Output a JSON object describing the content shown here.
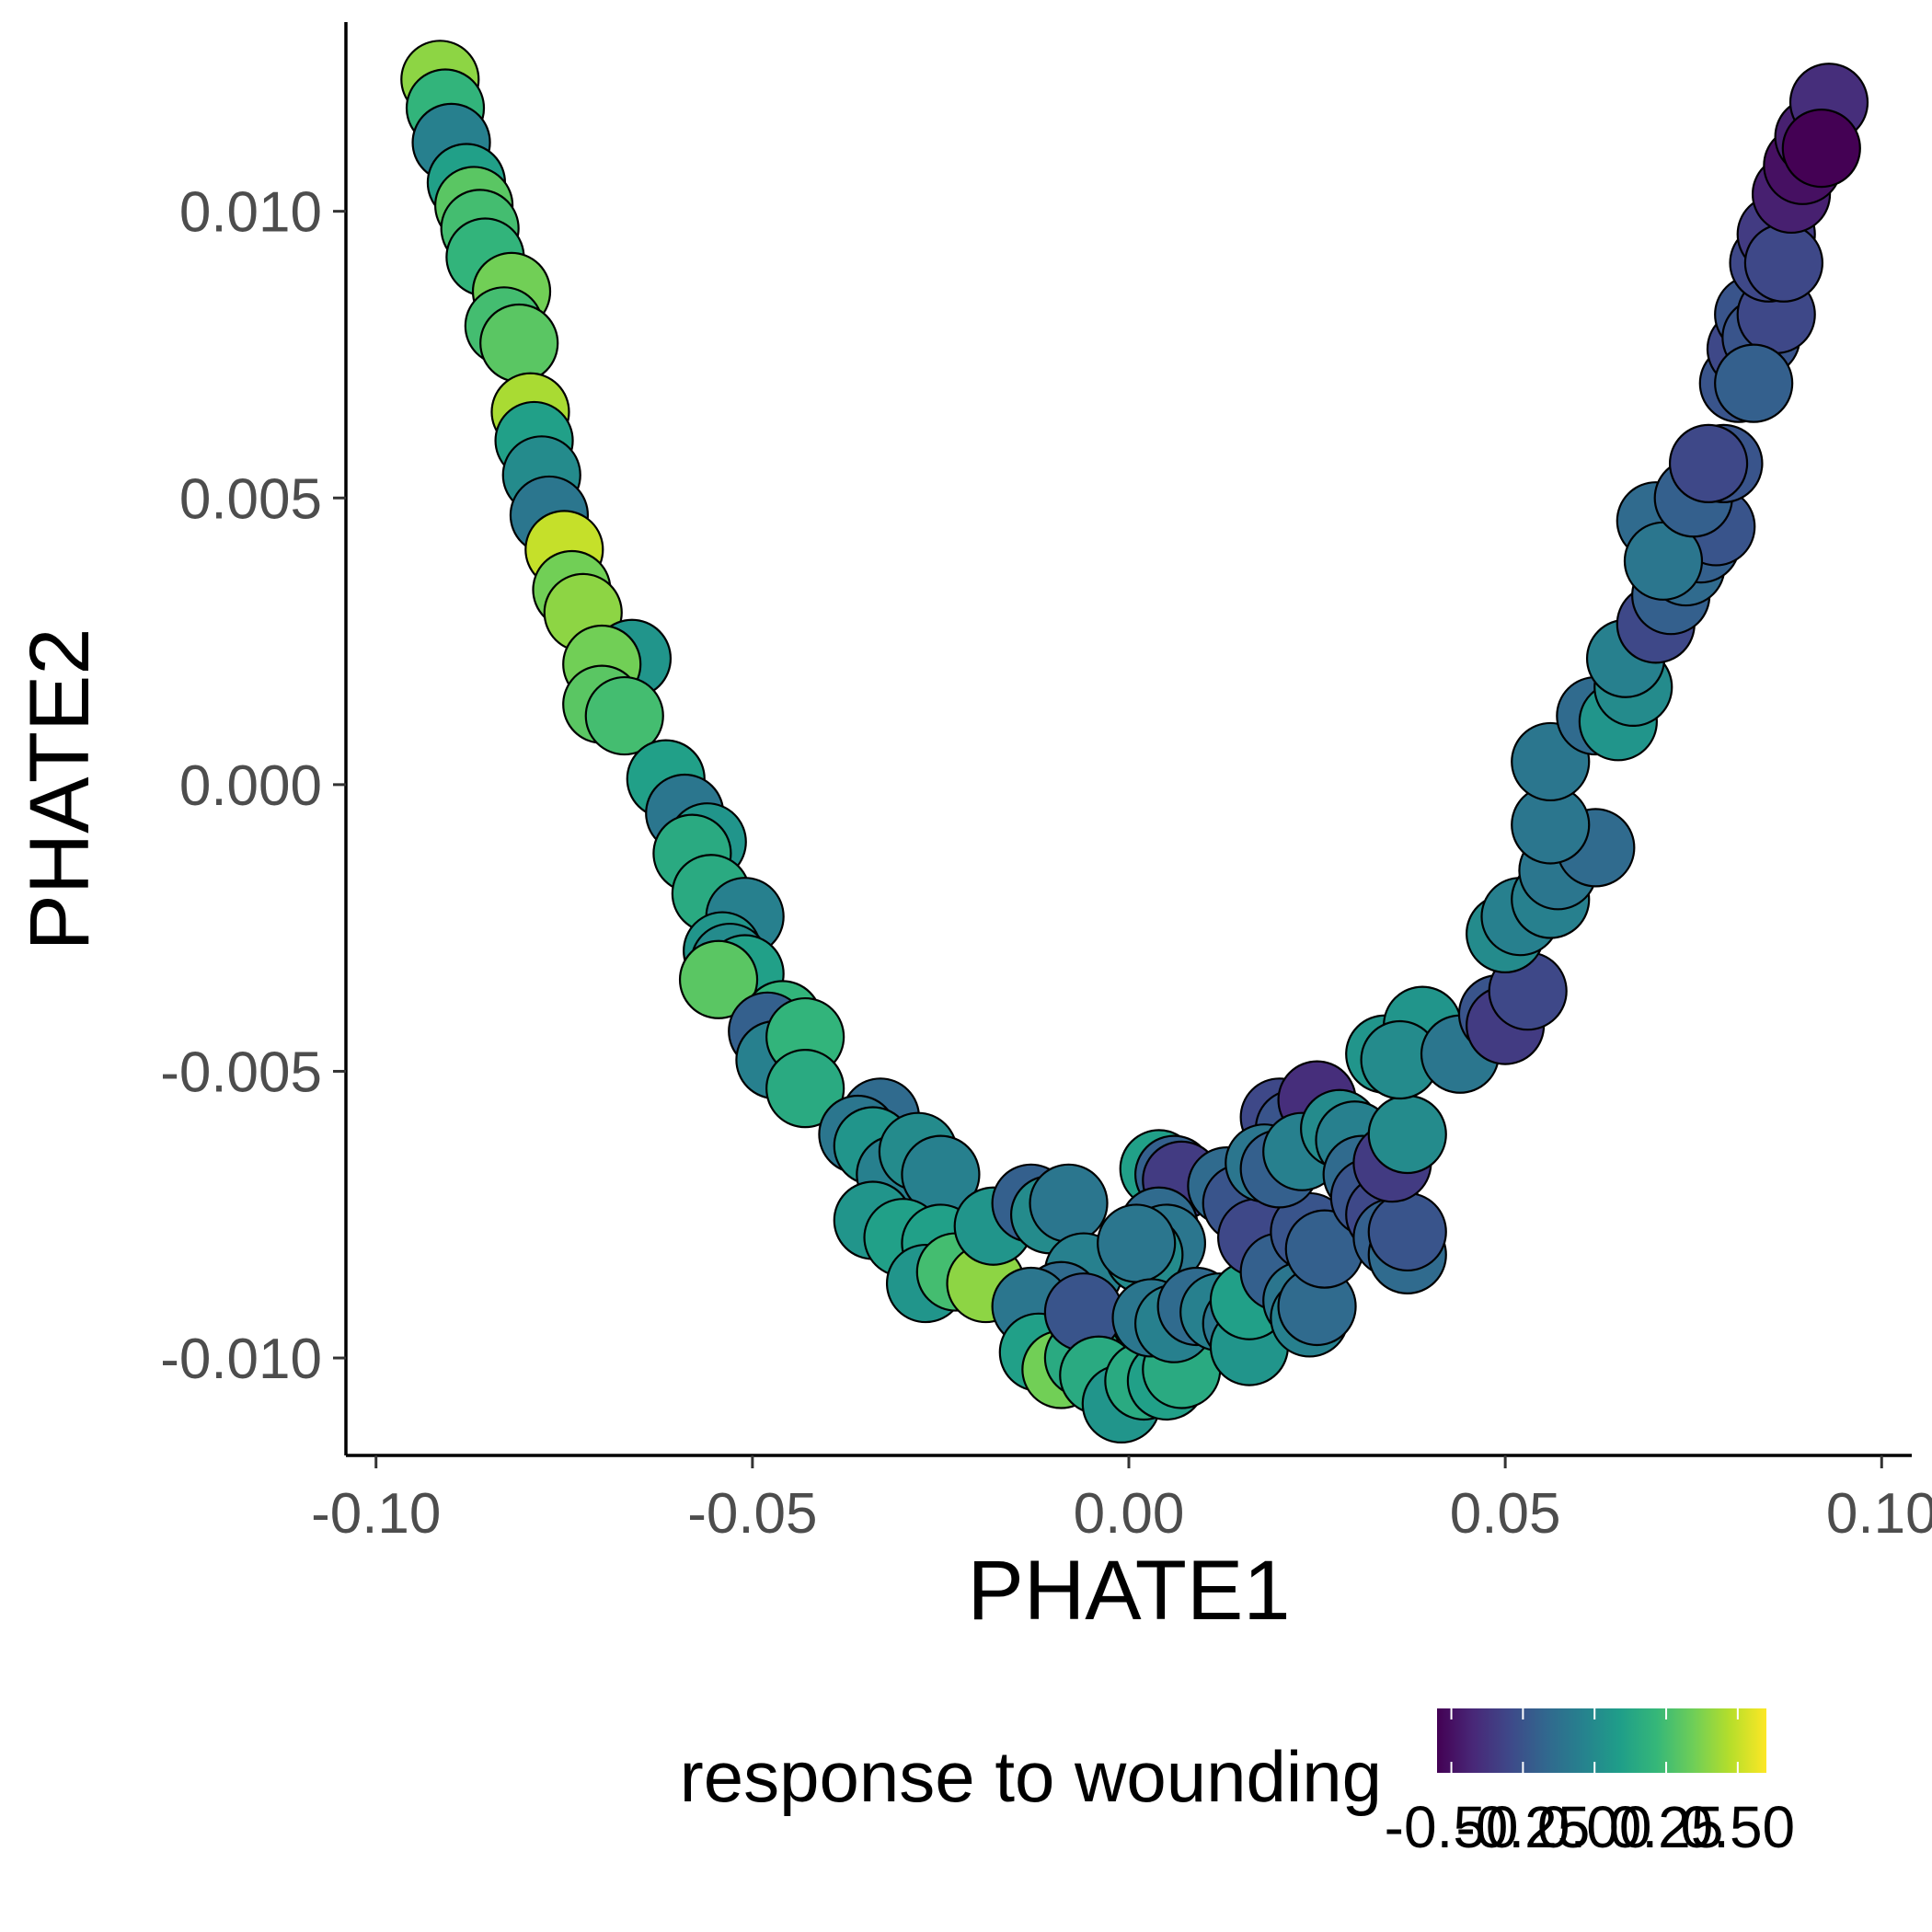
{
  "chart_data": {
    "type": "scatter",
    "xlabel": "PHATE1",
    "ylabel": "PHATE2",
    "xlim": [
      -0.104,
      0.104
    ],
    "ylim": [
      -0.0117,
      0.0133
    ],
    "x_ticks": [
      {
        "value": -0.1,
        "label": "-0.10"
      },
      {
        "value": -0.05,
        "label": "-0.05"
      },
      {
        "value": 0.0,
        "label": "0.00"
      },
      {
        "value": 0.05,
        "label": "0.05"
      },
      {
        "value": 0.1,
        "label": "0.10"
      }
    ],
    "y_ticks": [
      {
        "value": -0.01,
        "label": "-0.010"
      },
      {
        "value": -0.005,
        "label": "-0.005"
      },
      {
        "value": 0.0,
        "label": "0.000"
      },
      {
        "value": 0.005,
        "label": "0.005"
      },
      {
        "value": 0.01,
        "label": "0.010"
      }
    ],
    "grid": false,
    "legend": {
      "title": "response to wounding",
      "position": "bottom",
      "type": "colorbar",
      "range": [
        -0.55,
        0.6
      ],
      "ticks": [
        {
          "value": -0.5,
          "label": "-0.50"
        },
        {
          "value": -0.25,
          "label": "-0.25"
        },
        {
          "value": 0.0,
          "label": "0.00"
        },
        {
          "value": 0.25,
          "label": "0.25"
        },
        {
          "value": 0.5,
          "label": "0.50"
        }
      ],
      "colors": [
        "#440154",
        "#482878",
        "#3e4989",
        "#31688e",
        "#26828e",
        "#1f9e89",
        "#35b779",
        "#6ece58",
        "#b5de2b",
        "#fde725"
      ]
    },
    "point_style": {
      "stroke": "#000000"
    },
    "points": [
      {
        "x": -0.0915,
        "y": 0.0123,
        "c": 0.4
      },
      {
        "x": -0.0908,
        "y": 0.0118,
        "c": 0.2
      },
      {
        "x": -0.09,
        "y": 0.0112,
        "c": -0.05
      },
      {
        "x": -0.088,
        "y": 0.0105,
        "c": 0.1
      },
      {
        "x": -0.087,
        "y": 0.0101,
        "c": 0.3
      },
      {
        "x": -0.0862,
        "y": 0.0097,
        "c": 0.25
      },
      {
        "x": -0.0855,
        "y": 0.0092,
        "c": 0.2
      },
      {
        "x": -0.082,
        "y": 0.0086,
        "c": 0.35
      },
      {
        "x": -0.083,
        "y": 0.008,
        "c": 0.25
      },
      {
        "x": -0.081,
        "y": 0.0077,
        "c": 0.3
      },
      {
        "x": -0.0795,
        "y": 0.0065,
        "c": 0.45
      },
      {
        "x": -0.079,
        "y": 0.006,
        "c": 0.1
      },
      {
        "x": -0.078,
        "y": 0.0054,
        "c": 0.0
      },
      {
        "x": -0.077,
        "y": 0.0047,
        "c": -0.1
      },
      {
        "x": -0.075,
        "y": 0.0041,
        "c": 0.5
      },
      {
        "x": -0.074,
        "y": 0.0034,
        "c": 0.35
      },
      {
        "x": -0.0725,
        "y": 0.003,
        "c": 0.4
      },
      {
        "x": -0.066,
        "y": 0.0022,
        "c": 0.05
      },
      {
        "x": -0.07,
        "y": 0.0021,
        "c": 0.35
      },
      {
        "x": -0.07,
        "y": 0.0014,
        "c": 0.3
      },
      {
        "x": -0.067,
        "y": 0.0012,
        "c": 0.25
      },
      {
        "x": -0.0615,
        "y": 0.0001,
        "c": 0.1
      },
      {
        "x": -0.059,
        "y": -0.0005,
        "c": -0.1
      },
      {
        "x": -0.056,
        "y": -0.001,
        "c": 0.05
      },
      {
        "x": -0.058,
        "y": -0.0012,
        "c": 0.15
      },
      {
        "x": -0.0555,
        "y": -0.0019,
        "c": 0.15
      },
      {
        "x": -0.051,
        "y": -0.0023,
        "c": -0.05
      },
      {
        "x": -0.054,
        "y": -0.0029,
        "c": 0.05
      },
      {
        "x": -0.053,
        "y": -0.0031,
        "c": 0.0
      },
      {
        "x": -0.051,
        "y": -0.0033,
        "c": 0.1
      },
      {
        "x": -0.0545,
        "y": -0.0034,
        "c": 0.3
      },
      {
        "x": -0.046,
        "y": -0.0041,
        "c": 0.2
      },
      {
        "x": -0.048,
        "y": -0.0043,
        "c": -0.2
      },
      {
        "x": -0.047,
        "y": -0.0048,
        "c": -0.05
      },
      {
        "x": -0.043,
        "y": -0.0044,
        "c": 0.2
      },
      {
        "x": -0.043,
        "y": -0.0053,
        "c": 0.15
      },
      {
        "x": -0.033,
        "y": -0.0058,
        "c": -0.15
      },
      {
        "x": -0.036,
        "y": -0.0061,
        "c": -0.1
      },
      {
        "x": -0.034,
        "y": -0.0063,
        "c": 0.05
      },
      {
        "x": -0.031,
        "y": -0.0068,
        "c": -0.05
      },
      {
        "x": -0.028,
        "y": -0.0064,
        "c": 0.0
      },
      {
        "x": -0.025,
        "y": -0.0068,
        "c": -0.05
      },
      {
        "x": -0.034,
        "y": -0.0076,
        "c": 0.05
      },
      {
        "x": -0.03,
        "y": -0.0079,
        "c": 0.1
      },
      {
        "x": -0.025,
        "y": -0.008,
        "c": 0.1
      },
      {
        "x": -0.027,
        "y": -0.0087,
        "c": 0.05
      },
      {
        "x": -0.023,
        "y": -0.0085,
        "c": 0.25
      },
      {
        "x": -0.019,
        "y": -0.0087,
        "c": 0.4
      },
      {
        "x": -0.018,
        "y": -0.0077,
        "c": 0.05
      },
      {
        "x": -0.013,
        "y": -0.0073,
        "c": -0.2
      },
      {
        "x": -0.0105,
        "y": -0.0075,
        "c": 0.0
      },
      {
        "x": -0.008,
        "y": -0.0073,
        "c": -0.1
      },
      {
        "x": -0.006,
        "y": -0.0085,
        "c": -0.05
      },
      {
        "x": -0.009,
        "y": -0.009,
        "c": -0.15
      },
      {
        "x": -0.013,
        "y": -0.0091,
        "c": -0.1
      },
      {
        "x": -0.012,
        "y": -0.0099,
        "c": 0.1
      },
      {
        "x": -0.009,
        "y": -0.0102,
        "c": 0.35
      },
      {
        "x": -0.006,
        "y": -0.01,
        "c": 0.15
      },
      {
        "x": -0.006,
        "y": -0.0092,
        "c": -0.25
      },
      {
        "x": -0.004,
        "y": -0.0103,
        "c": 0.15
      },
      {
        "x": -0.001,
        "y": -0.0108,
        "c": 0.05
      },
      {
        "x": 0.002,
        "y": -0.0104,
        "c": 0.15
      },
      {
        "x": 0.005,
        "y": -0.0104,
        "c": 0.1
      },
      {
        "x": 0.007,
        "y": -0.0102,
        "c": 0.15
      },
      {
        "x": 0.004,
        "y": -0.0067,
        "c": 0.1
      },
      {
        "x": 0.006,
        "y": -0.0068,
        "c": -0.2
      },
      {
        "x": 0.007,
        "y": -0.0069,
        "c": -0.35
      },
      {
        "x": 0.004,
        "y": -0.0077,
        "c": -0.15
      },
      {
        "x": 0.005,
        "y": -0.008,
        "c": -0.1
      },
      {
        "x": 0.002,
        "y": -0.0082,
        "c": 0.0
      },
      {
        "x": 0.001,
        "y": -0.008,
        "c": -0.1
      },
      {
        "x": 0.003,
        "y": -0.0093,
        "c": -0.1
      },
      {
        "x": 0.006,
        "y": -0.0094,
        "c": -0.05
      },
      {
        "x": 0.009,
        "y": -0.0091,
        "c": -0.15
      },
      {
        "x": 0.012,
        "y": -0.0092,
        "c": -0.05
      },
      {
        "x": 0.015,
        "y": -0.0094,
        "c": -0.1
      },
      {
        "x": 0.016,
        "y": -0.0098,
        "c": 0.05
      },
      {
        "x": 0.016,
        "y": -0.009,
        "c": 0.1
      },
      {
        "x": 0.013,
        "y": -0.007,
        "c": -0.15
      },
      {
        "x": 0.015,
        "y": -0.0073,
        "c": -0.25
      },
      {
        "x": 0.017,
        "y": -0.0079,
        "c": -0.3
      },
      {
        "x": 0.02,
        "y": -0.0085,
        "c": -0.2
      },
      {
        "x": 0.023,
        "y": -0.009,
        "c": -0.1
      },
      {
        "x": 0.024,
        "y": -0.0093,
        "c": -0.05
      },
      {
        "x": 0.025,
        "y": -0.0091,
        "c": -0.15
      },
      {
        "x": 0.024,
        "y": -0.0078,
        "c": -0.25
      },
      {
        "x": 0.026,
        "y": -0.0081,
        "c": -0.2
      },
      {
        "x": 0.02,
        "y": -0.0058,
        "c": -0.3
      },
      {
        "x": 0.022,
        "y": -0.006,
        "c": -0.25
      },
      {
        "x": 0.025,
        "y": -0.0055,
        "c": -0.4
      },
      {
        "x": 0.018,
        "y": -0.0066,
        "c": -0.1
      },
      {
        "x": 0.02,
        "y": -0.0067,
        "c": -0.2
      },
      {
        "x": 0.023,
        "y": -0.0064,
        "c": -0.05
      },
      {
        "x": 0.028,
        "y": -0.006,
        "c": 0.0
      },
      {
        "x": 0.03,
        "y": -0.0062,
        "c": -0.05
      },
      {
        "x": 0.031,
        "y": -0.0068,
        "c": -0.15
      },
      {
        "x": 0.032,
        "y": -0.0072,
        "c": -0.25
      },
      {
        "x": 0.034,
        "y": -0.0075,
        "c": -0.3
      },
      {
        "x": 0.035,
        "y": -0.0079,
        "c": -0.2
      },
      {
        "x": 0.037,
        "y": -0.0082,
        "c": -0.15
      },
      {
        "x": 0.037,
        "y": -0.0078,
        "c": -0.25
      },
      {
        "x": 0.035,
        "y": -0.0066,
        "c": -0.35
      },
      {
        "x": 0.037,
        "y": -0.0061,
        "c": 0.0
      },
      {
        "x": 0.034,
        "y": -0.0047,
        "c": 0.05
      },
      {
        "x": 0.039,
        "y": -0.0042,
        "c": 0.05
      },
      {
        "x": 0.036,
        "y": -0.0048,
        "c": 0.0
      },
      {
        "x": 0.044,
        "y": -0.0047,
        "c": -0.1
      },
      {
        "x": 0.049,
        "y": -0.004,
        "c": -0.25
      },
      {
        "x": 0.05,
        "y": -0.0042,
        "c": -0.35
      },
      {
        "x": 0.053,
        "y": -0.0036,
        "c": -0.3
      },
      {
        "x": 0.05,
        "y": -0.0026,
        "c": 0.0
      },
      {
        "x": 0.052,
        "y": -0.0023,
        "c": -0.05
      },
      {
        "x": 0.056,
        "y": -0.002,
        "c": -0.05
      },
      {
        "x": 0.057,
        "y": -0.0015,
        "c": -0.1
      },
      {
        "x": 0.062,
        "y": -0.0011,
        "c": -0.15
      },
      {
        "x": 0.056,
        "y": -0.0007,
        "c": -0.1
      },
      {
        "x": 0.056,
        "y": 0.0004,
        "c": -0.1
      },
      {
        "x": 0.062,
        "y": 0.0012,
        "c": -0.15
      },
      {
        "x": 0.065,
        "y": 0.0011,
        "c": 0.05
      },
      {
        "x": 0.067,
        "y": 0.0017,
        "c": 0.0
      },
      {
        "x": 0.066,
        "y": 0.0022,
        "c": -0.05
      },
      {
        "x": 0.07,
        "y": 0.0028,
        "c": -0.3
      },
      {
        "x": 0.072,
        "y": 0.0033,
        "c": -0.2
      },
      {
        "x": 0.074,
        "y": 0.0038,
        "c": -0.15
      },
      {
        "x": 0.076,
        "y": 0.0042,
        "c": -0.2
      },
      {
        "x": 0.078,
        "y": 0.0045,
        "c": -0.25
      },
      {
        "x": 0.07,
        "y": 0.0046,
        "c": -0.15
      },
      {
        "x": 0.071,
        "y": 0.0039,
        "c": -0.1
      },
      {
        "x": 0.075,
        "y": 0.005,
        "c": -0.2
      },
      {
        "x": 0.079,
        "y": 0.0056,
        "c": -0.25
      },
      {
        "x": 0.077,
        "y": 0.0056,
        "c": -0.3
      },
      {
        "x": 0.081,
        "y": 0.007,
        "c": -0.25
      },
      {
        "x": 0.082,
        "y": 0.0076,
        "c": -0.3
      },
      {
        "x": 0.083,
        "y": 0.0082,
        "c": -0.25
      },
      {
        "x": 0.084,
        "y": 0.0078,
        "c": -0.25
      },
      {
        "x": 0.086,
        "y": 0.0082,
        "c": -0.3
      },
      {
        "x": 0.083,
        "y": 0.007,
        "c": -0.2
      },
      {
        "x": 0.085,
        "y": 0.0091,
        "c": -0.3
      },
      {
        "x": 0.086,
        "y": 0.0096,
        "c": -0.35
      },
      {
        "x": 0.087,
        "y": 0.0091,
        "c": -0.3
      },
      {
        "x": 0.088,
        "y": 0.0103,
        "c": -0.45
      },
      {
        "x": 0.0895,
        "y": 0.0108,
        "c": -0.5
      },
      {
        "x": 0.091,
        "y": 0.0113,
        "c": -0.45
      },
      {
        "x": 0.093,
        "y": 0.0119,
        "c": -0.4
      },
      {
        "x": 0.092,
        "y": 0.0111,
        "c": -0.55
      }
    ]
  }
}
